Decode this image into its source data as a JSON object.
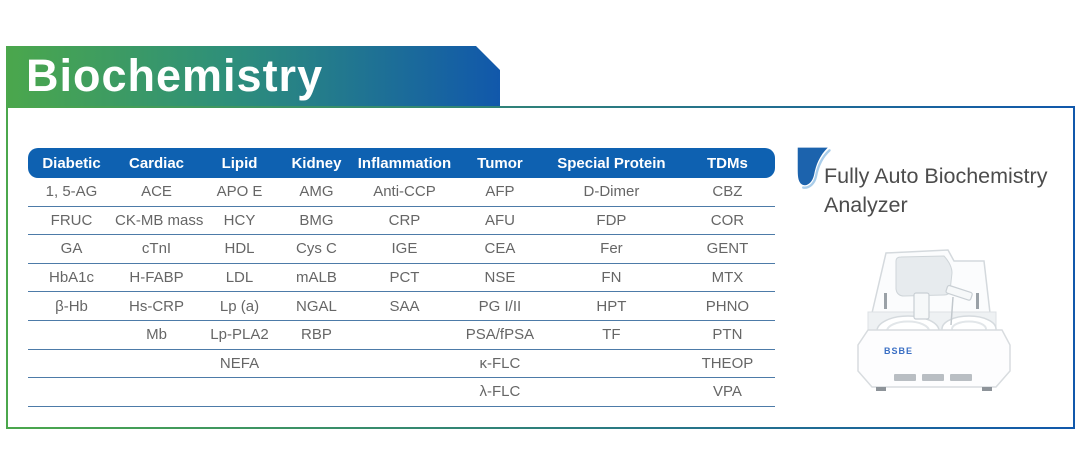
{
  "banner": {
    "title": "Biochemistry"
  },
  "table": {
    "headers": [
      "Diabetic",
      "Cardiac",
      "Lipid",
      "Kidney",
      "Inflammation",
      "Tumor",
      "Special Protein",
      "TDMs"
    ],
    "rows": [
      [
        "1, 5-AG",
        "ACE",
        "APO E",
        "AMG",
        "Anti-CCP",
        "AFP",
        "D-Dimer",
        "CBZ"
      ],
      [
        "FRUC",
        "CK-MB mass",
        "HCY",
        "BMG",
        "CRP",
        "AFU",
        "FDP",
        "COR"
      ],
      [
        "GA",
        "cTnI",
        "HDL",
        "Cys C",
        "IGE",
        "CEA",
        "Fer",
        "GENT"
      ],
      [
        "HbA1c",
        "H-FABP",
        "LDL",
        "mALB",
        "PCT",
        "NSE",
        "FN",
        "MTX"
      ],
      [
        "β-Hb",
        "Hs-CRP",
        "Lp (a)",
        "NGAL",
        "SAA",
        "PG I/II",
        "HPT",
        "PHNO"
      ],
      [
        "",
        "Mb",
        "Lp-PLA2",
        "RBP",
        "",
        "PSA/fPSA",
        "TF",
        "PTN"
      ],
      [
        "",
        "",
        "NEFA",
        "",
        "",
        "κ-FLC",
        "",
        "THEOP"
      ],
      [
        "",
        "",
        "",
        "",
        "",
        "λ-FLC",
        "",
        "VPA"
      ]
    ]
  },
  "product": {
    "icon": "blue-swoosh",
    "title_line1": "Fully Auto Biochemistry",
    "title_line2": "Analyzer",
    "brand": "BSBE"
  },
  "colors": {
    "gradient_green": "#4ba74c",
    "gradient_blue": "#1158ab",
    "header_bar_blue": "#0e61b1",
    "row_line_blue": "#4d7ba8",
    "body_text_gray": "#666666",
    "heading_text_gray": "#4c4c4c"
  }
}
